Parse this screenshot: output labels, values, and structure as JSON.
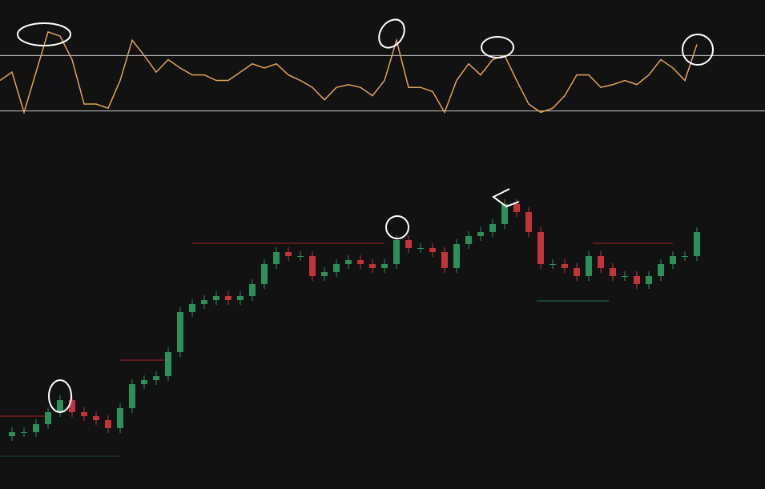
{
  "chart_data": [
    {
      "type": "line",
      "color": "#e0a35a",
      "levels": [
        70,
        30
      ],
      "level_color": "#c9c9c9",
      "ylim": [
        20,
        110
      ],
      "values": [
        52,
        58,
        29,
        58,
        87,
        84,
        67,
        35,
        35,
        32,
        52,
        81,
        70,
        58,
        67,
        61,
        56,
        56,
        52,
        52,
        58,
        64,
        61,
        64,
        56,
        52,
        47,
        38,
        47,
        49,
        47,
        41,
        52,
        81,
        47,
        47,
        44,
        29,
        52,
        64,
        56,
        67,
        70,
        52,
        35,
        29,
        32,
        41,
        56,
        56,
        47,
        49,
        52,
        49,
        56,
        67,
        61,
        52,
        78
      ]
    },
    {
      "type": "candlestick",
      "up_color": "#2f8f5b",
      "down_color": "#c0343c",
      "ylim": [
        0,
        611
      ],
      "values": [
        66,
        71,
        71,
        81,
        96,
        111,
        96,
        91,
        86,
        76,
        101,
        131,
        136,
        141,
        171,
        221,
        231,
        236,
        241,
        236,
        241,
        256,
        281,
        296,
        291,
        291,
        266,
        271,
        281,
        286,
        281,
        276,
        281,
        311,
        301,
        301,
        296,
        276,
        306,
        316,
        321,
        331,
        356,
        346,
        321,
        281,
        281,
        276,
        266,
        291,
        276,
        266,
        266,
        256,
        266,
        281,
        291,
        291,
        321
      ]
    }
  ]
}
